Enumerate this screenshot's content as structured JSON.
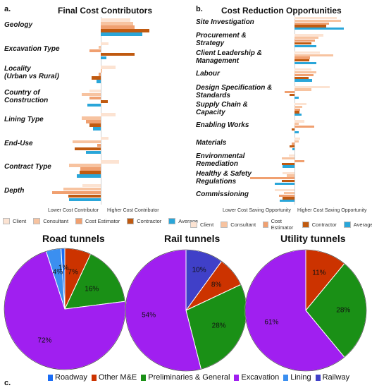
{
  "panels": {
    "a": "a.",
    "b": "b.",
    "c": "c."
  },
  "chart_data": [
    {
      "type": "bar",
      "orientation": "horizontal",
      "title": "Final Cost Contributors",
      "xlabel_left": "Lower Cost Contributor",
      "xlabel_right": "Higher Cost Contributor",
      "categories": [
        "Geology",
        "Excavation Type",
        "Locality\n(Urban vs Rural)",
        "Country of\nConstruction",
        "Lining Type",
        "End-Use",
        "Contract Type",
        "Depth"
      ],
      "series": [
        {
          "name": "Client",
          "color": "#fce3d2",
          "values": [
            2.6,
            0.7,
            1.3,
            -1.0,
            1.3,
            0.7,
            1.6,
            -1.6
          ]
        },
        {
          "name": "Consultant",
          "color": "#f7c3a0",
          "values": [
            2.9,
            -0.2,
            0.1,
            -1.7,
            -1.7,
            -2.5,
            -2.8,
            -3.3
          ]
        },
        {
          "name": "Cost Estimator",
          "color": "#f0a070",
          "values": [
            3.0,
            -1.0,
            -0.2,
            -1.0,
            -1.3,
            -0.3,
            -1.8,
            -4.3
          ]
        },
        {
          "name": "Contractor",
          "color": "#c05a10",
          "values": [
            4.3,
            3.0,
            -0.8,
            0.6,
            -1.0,
            -2.3,
            -1.9,
            -2.9
          ]
        },
        {
          "name": "Average",
          "color": "#2aa6d9",
          "values": [
            3.7,
            0.5,
            -0.4,
            -1.2,
            -0.7,
            -1.3,
            -2.1,
            -2.8
          ]
        }
      ],
      "extra": {
        "Excavation Type": {
          "Cost Estimator extra": -0.6
        },
        "Locality": {
          "Consultant extra": 3.3
        }
      }
    },
    {
      "type": "bar",
      "orientation": "horizontal",
      "title": "Cost Reduction Opportunities",
      "xlabel_left": "Lower Cost Saving Opportunity",
      "xlabel_right": "Higher Cost Saving Opportunity",
      "categories": [
        "Site Investigation",
        "Procurement &\nStrategy",
        "Client Leadership &\nManagement",
        "Labour",
        "Design Specification &\nStandards",
        "Supply Chain &\nCapacity",
        "Enabling Works",
        "Materials",
        "Environmental\nRemediation",
        "Healthy & Safety\nRegulations",
        "Commissioning"
      ],
      "series": [
        {
          "name": "Client",
          "color": "#fce3d2",
          "values": [
            4.3,
            2.9,
            2.6,
            1.7,
            3.6,
            1.2,
            1.0,
            0.6,
            -0.6,
            -1.2,
            -2.0
          ]
        },
        {
          "name": "Consultant",
          "color": "#f7c3a0",
          "values": [
            4.7,
            2.4,
            3.9,
            2.2,
            1.7,
            0.8,
            0.4,
            0.4,
            -1.3,
            -0.8,
            -1.1
          ]
        },
        {
          "name": "Cost Estimator",
          "color": "#f0a070",
          "values": [
            3.5,
            2.1,
            1.6,
            1.9,
            -1.0,
            0.6,
            2.0,
            -0.3,
            1.0,
            -4.5,
            -1.6
          ]
        },
        {
          "name": "Contractor",
          "color": "#c05a10",
          "values": [
            3.2,
            1.7,
            1.5,
            1.4,
            -0.5,
            0.5,
            -0.3,
            -0.5,
            -1.3,
            -1.3,
            -1.2
          ]
        },
        {
          "name": "Average",
          "color": "#2aa6d9",
          "values": [
            5.0,
            2.2,
            2.2,
            1.8,
            0.4,
            0.7,
            0.4,
            -0.2,
            -1.2,
            -2.0,
            -1.5
          ]
        }
      ]
    },
    {
      "type": "pie",
      "title": "Road tunnels",
      "slices": [
        {
          "name": "Other M&E",
          "value": 7,
          "label": "7%",
          "color": "#cc3300"
        },
        {
          "name": "Preliminaries & General",
          "value": 16,
          "label": "16%",
          "color": "#1a9016"
        },
        {
          "name": "Excavation",
          "value": 72,
          "label": "72%",
          "color": "#a01ff0"
        },
        {
          "name": "Lining",
          "value": 4,
          "label": "4%",
          "color": "#3b8ff0"
        },
        {
          "name": "Roadway",
          "value": 1,
          "label": "1%",
          "color": "#1a6cf5"
        }
      ]
    },
    {
      "type": "pie",
      "title": "Rail tunnels",
      "slices": [
        {
          "name": "Railway",
          "value": 10,
          "label": "10%",
          "color": "#4040c8"
        },
        {
          "name": "Other M&E",
          "value": 8,
          "label": "8%",
          "color": "#cc3300"
        },
        {
          "name": "Preliminaries & General",
          "value": 28,
          "label": "28%",
          "color": "#1a9016"
        },
        {
          "name": "Excavation",
          "value": 54,
          "label": "54%",
          "color": "#a01ff0"
        }
      ]
    },
    {
      "type": "pie",
      "title": "Utility tunnels",
      "slices": [
        {
          "name": "Other M&E",
          "value": 11,
          "label": "11%",
          "color": "#cc3300"
        },
        {
          "name": "Preliminaries & General",
          "value": 28,
          "label": "28%",
          "color": "#1a9016"
        },
        {
          "name": "Excavation",
          "value": 61,
          "label": "61%",
          "color": "#a01ff0"
        }
      ]
    }
  ],
  "pie_legend": [
    {
      "name": "Roadway",
      "color": "#1a6cf5"
    },
    {
      "name": "Other M&E",
      "color": "#cc3300"
    },
    {
      "name": "Preliminaries & General",
      "color": "#1a9016"
    },
    {
      "name": "Excavation",
      "color": "#a01ff0"
    },
    {
      "name": "Lining",
      "color": "#3b8ff0"
    },
    {
      "name": "Railway",
      "color": "#4040c8"
    }
  ]
}
